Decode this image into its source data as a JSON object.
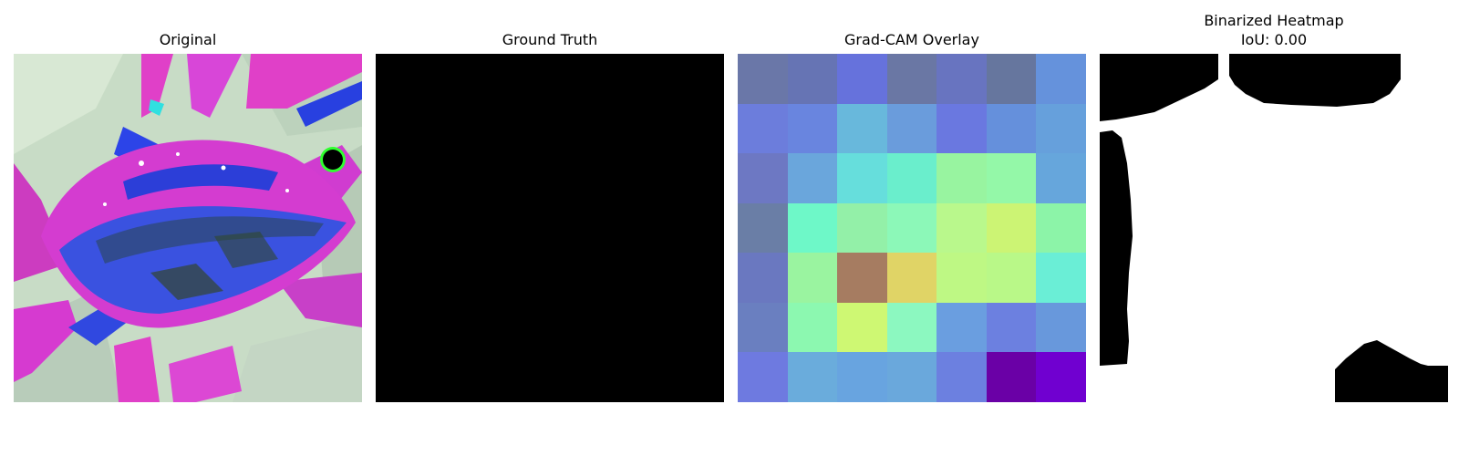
{
  "panels": [
    {
      "title": "Original"
    },
    {
      "title": "Ground Truth"
    },
    {
      "title": "Grad-CAM Overlay"
    },
    {
      "title_line1": "Binarized Heatmap",
      "title_line2": "IoU: 0.00"
    }
  ],
  "gradcam_grid": [
    [
      "#6a77a8",
      "#6674b4",
      "#6672dc",
      "#6a77a4",
      "#6874c0",
      "#66769e",
      "#6592dc"
    ],
    [
      "#6c7ddc",
      "#6985df",
      "#68b8dc",
      "#6a9cdc",
      "#6a78e0",
      "#6590dc",
      "#66a0dc"
    ],
    [
      "#6d78c3",
      "#6aa6dc",
      "#66dedc",
      "#6aeecc",
      "#98f4a0",
      "#94f8a8",
      "#66a6dc"
    ],
    [
      "#6a7ea6",
      "#6ef8c8",
      "#93f0a8",
      "#8cf8b8",
      "#b9f88c",
      "#ccf474",
      "#8cf4a8"
    ],
    [
      "#6a78c0",
      "#9af4a0",
      "#a67c61",
      "#e0d466",
      "#bef884",
      "#b9f888",
      "#6aeed6"
    ],
    [
      "#6a7fc0",
      "#8cf8b0",
      "#cef873",
      "#8cf8c0",
      "#6a9ee0",
      "#6c80e0",
      "#6898dc"
    ],
    [
      "#6e7ae0",
      "#6aacdc",
      "#68a4e0",
      "#6aa8dc",
      "#6c80e0",
      "#6a00a6",
      "#7000d0"
    ]
  ]
}
